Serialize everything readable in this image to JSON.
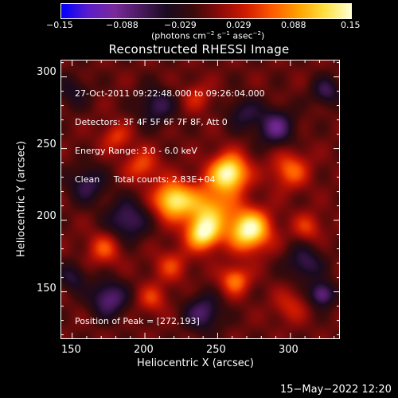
{
  "colorbar": {
    "ticks": [
      "−0.15",
      "−0.088",
      "−0.029",
      "0.029",
      "0.088",
      "0.15"
    ],
    "unit_text": "(photons cm",
    "unit_exp1": "−2",
    "unit_mid": " s",
    "unit_exp2": "−1",
    "unit_mid2": " asec",
    "unit_exp3": "−2",
    "unit_close": ")",
    "range": [
      -0.15,
      0.15
    ],
    "colormap": [
      "#0000ff",
      "#5b1ccc",
      "#7a2a9c",
      "#4a1a60",
      "#1a0a20",
      "#3a0a0a",
      "#8a0a0a",
      "#d01a00",
      "#ff5a00",
      "#ffa000",
      "#ffe040",
      "#ffffd0"
    ]
  },
  "chart_data": {
    "type": "heatmap",
    "title": "Reconstructed RHESSI Image",
    "xlabel": "Heliocentric X (arcsec)",
    "ylabel": "Heliocentric Y (arcsec)",
    "xlim": [
      142,
      334
    ],
    "ylim": [
      117,
      312
    ],
    "xticks": [
      "150",
      "200",
      "250",
      "300"
    ],
    "yticks": [
      "150",
      "200",
      "250",
      "300"
    ],
    "annotations": [
      "27-Oct-2011 09:22:48.000 to 09:26:04.000",
      "Detectors: 3F 4F 5F 6F 7F 8F, Att 0",
      "Energy Range: 3.0 - 6.0 keV",
      "Clean     Total counts: 2.83E+04"
    ],
    "peak_label": "Position of Peak = [272,193]",
    "peak": [
      272,
      193
    ],
    "sources": [
      {
        "x": 258,
        "y": 233,
        "a": 0.15,
        "s": 9
      },
      {
        "x": 219,
        "y": 214,
        "a": 0.13,
        "s": 9
      },
      {
        "x": 272,
        "y": 193,
        "a": 0.15,
        "s": 10
      },
      {
        "x": 244,
        "y": 208,
        "a": 0.1,
        "s": 12
      },
      {
        "x": 240,
        "y": 190,
        "a": 0.12,
        "s": 8
      },
      {
        "x": 262,
        "y": 158,
        "a": 0.08,
        "s": 7
      },
      {
        "x": 300,
        "y": 235,
        "a": 0.07,
        "s": 9
      },
      {
        "x": 198,
        "y": 238,
        "a": 0.06,
        "s": 8
      },
      {
        "x": 172,
        "y": 180,
        "a": 0.06,
        "s": 8
      },
      {
        "x": 218,
        "y": 168,
        "a": 0.05,
        "s": 8
      },
      {
        "x": 180,
        "y": 258,
        "a": 0.05,
        "s": 7
      },
      {
        "x": 236,
        "y": 286,
        "a": 0.04,
        "s": 7
      },
      {
        "x": 312,
        "y": 195,
        "a": 0.05,
        "s": 7
      },
      {
        "x": 205,
        "y": 145,
        "a": 0.05,
        "s": 7
      },
      {
        "x": 300,
        "y": 140,
        "a": 0.04,
        "s": 8
      },
      {
        "x": 160,
        "y": 225,
        "a": -0.06,
        "s": 9
      },
      {
        "x": 188,
        "y": 200,
        "a": -0.07,
        "s": 10
      },
      {
        "x": 290,
        "y": 265,
        "a": -0.08,
        "s": 9
      },
      {
        "x": 310,
        "y": 170,
        "a": -0.06,
        "s": 9
      },
      {
        "x": 240,
        "y": 135,
        "a": -0.07,
        "s": 9
      },
      {
        "x": 175,
        "y": 145,
        "a": -0.08,
        "s": 9
      },
      {
        "x": 208,
        "y": 280,
        "a": -0.06,
        "s": 9
      },
      {
        "x": 268,
        "y": 275,
        "a": -0.05,
        "s": 8
      },
      {
        "x": 322,
        "y": 148,
        "a": -0.09,
        "s": 6
      },
      {
        "x": 325,
        "y": 290,
        "a": -0.06,
        "s": 7
      },
      {
        "x": 150,
        "y": 160,
        "a": -0.05,
        "s": 7
      },
      {
        "x": 150,
        "y": 290,
        "a": -0.04,
        "s": 8
      }
    ]
  },
  "footer": {
    "timestamp": "15−May−2022 12:20"
  }
}
